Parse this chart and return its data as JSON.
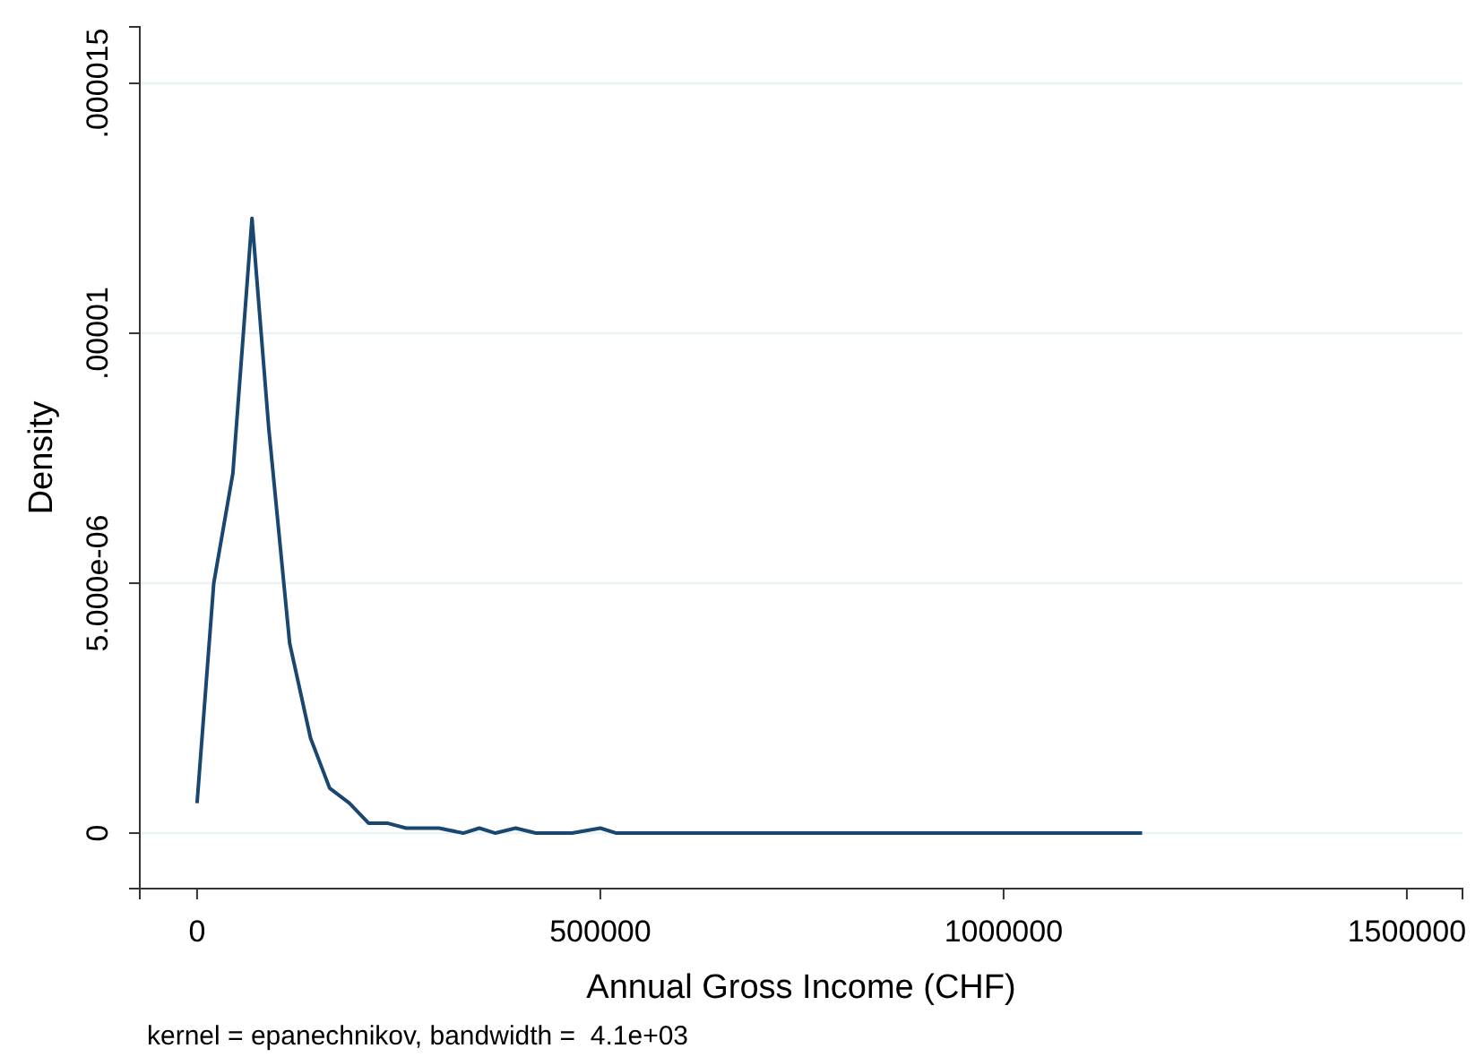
{
  "chart_data": {
    "type": "line",
    "xlabel": "Annual Gross Income (CHF)",
    "ylabel": "Density",
    "annotations": [
      "kernel = epanechnikov, bandwidth =  4.1e+03"
    ],
    "x": [
      0,
      20700,
      44400,
      68100,
      88900,
      114800,
      140700,
      164400,
      188900,
      212600,
      235600,
      259300,
      280000,
      300000,
      330000,
      350000,
      370000,
      395000,
      420000,
      440000,
      465000,
      500000,
      520000,
      600000,
      700000,
      800000,
      900000,
      1000000,
      1100000,
      1171800
    ],
    "series": [
      {
        "color": "#1a476f",
        "values": [
          6e-07,
          5e-06,
          7.2e-06,
          1.23e-05,
          8.1e-06,
          3.8e-06,
          1.9e-06,
          9e-07,
          6e-07,
          2e-07,
          2e-07,
          1e-07,
          1e-07,
          1e-07,
          0,
          1e-07,
          0,
          1e-07,
          0,
          0,
          0,
          1e-07,
          0,
          0,
          0,
          0,
          0,
          0,
          0,
          0
        ]
      }
    ],
    "xlim": [
      -71000,
      1569000
    ],
    "ylim": [
      -1.11e-06,
      1.613e-05
    ],
    "xticks": [
      0,
      500000,
      1000000,
      1500000
    ],
    "yticks": [
      0,
      {
        "value": 5e-06,
        "label": "5.000e-06"
      },
      {
        "value": 1e-05,
        "label": ".00001"
      },
      {
        "value": 1.5e-05,
        "label": ".000015"
      }
    ],
    "grid": "y",
    "marker": "none",
    "line_style": "solid"
  }
}
